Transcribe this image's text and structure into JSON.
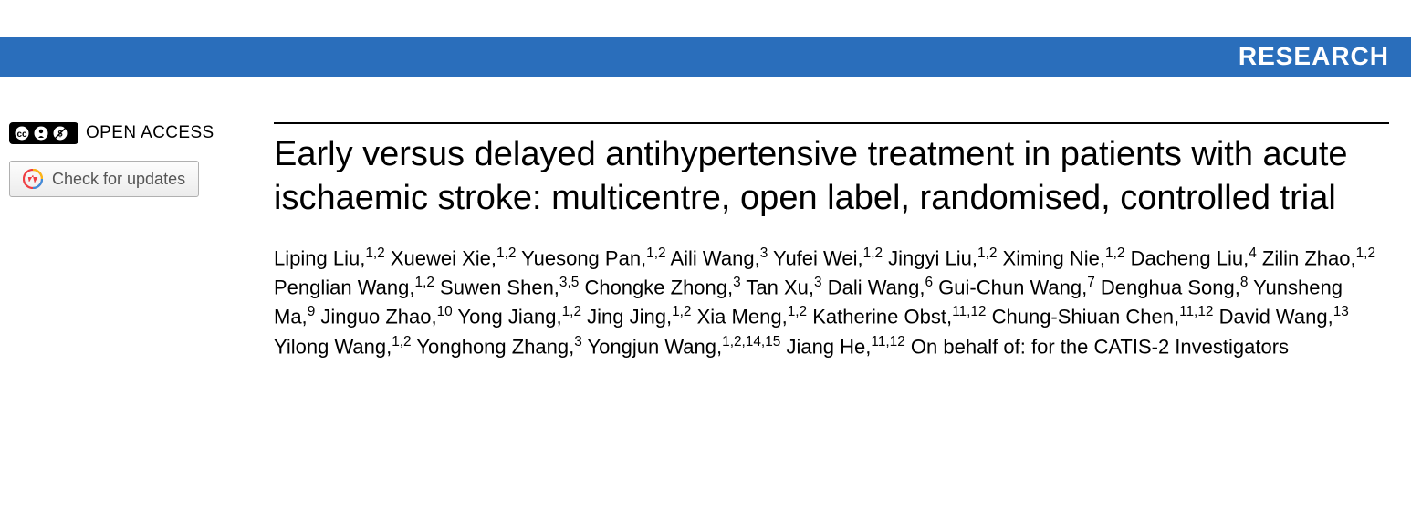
{
  "header": {
    "section_label": "RESEARCH",
    "bar_color": "#2a6ebb",
    "bar_text_color": "#ffffff"
  },
  "badges": {
    "open_access_label": "OPEN ACCESS",
    "check_updates_label": "Check for updates"
  },
  "article": {
    "title": "Early versus delayed antihypertensive treatment in patients with acute ischaemic stroke: multicentre, open label, randomised, controlled trial",
    "authors": [
      {
        "name": "Liping Liu",
        "affil": "1,2"
      },
      {
        "name": "Xuewei Xie",
        "affil": "1,2"
      },
      {
        "name": "Yuesong Pan",
        "affil": "1,2"
      },
      {
        "name": "Aili Wang",
        "affil": "3"
      },
      {
        "name": "Yufei Wei",
        "affil": "1,2"
      },
      {
        "name": "Jingyi Liu",
        "affil": "1,2"
      },
      {
        "name": "Ximing Nie",
        "affil": "1,2"
      },
      {
        "name": "Dacheng Liu",
        "affil": "4"
      },
      {
        "name": "Zilin Zhao",
        "affil": "1,2"
      },
      {
        "name": "Penglian Wang",
        "affil": "1,2"
      },
      {
        "name": "Suwen Shen",
        "affil": "3,5"
      },
      {
        "name": "Chongke Zhong",
        "affil": "3"
      },
      {
        "name": "Tan Xu",
        "affil": "3"
      },
      {
        "name": "Dali Wang",
        "affil": "6"
      },
      {
        "name": "Gui-Chun Wang",
        "affil": "7"
      },
      {
        "name": "Denghua Song",
        "affil": "8"
      },
      {
        "name": "Yunsheng Ma",
        "affil": "9"
      },
      {
        "name": "Jinguo Zhao",
        "affil": "10"
      },
      {
        "name": "Yong Jiang",
        "affil": "1,2"
      },
      {
        "name": "Jing Jing",
        "affil": "1,2"
      },
      {
        "name": "Xia Meng",
        "affil": "1,2"
      },
      {
        "name": "Katherine Obst",
        "affil": "11,12"
      },
      {
        "name": "Chung-Shiuan Chen",
        "affil": "11,12"
      },
      {
        "name": "David Wang",
        "affil": "13"
      },
      {
        "name": "Yilong Wang",
        "affil": "1,2"
      },
      {
        "name": "Yonghong Zhang",
        "affil": "3"
      },
      {
        "name": "Yongjun Wang",
        "affil": "1,2,14,15"
      },
      {
        "name": "Jiang He",
        "affil": "11,12"
      }
    ],
    "on_behalf": "On behalf of: for the CATIS-2 Investigators"
  },
  "colors": {
    "title_color": "#000000",
    "text_color": "#000000",
    "button_border": "#b0b0b0",
    "button_text": "#555555"
  }
}
